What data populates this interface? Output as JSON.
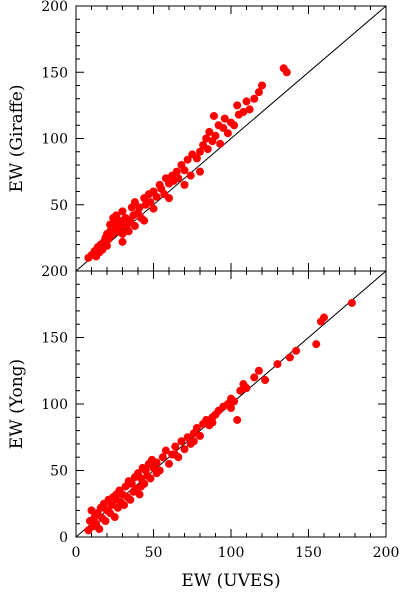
{
  "chart_data": [
    {
      "type": "scatter",
      "xlabel": "",
      "ylabel": "EW (Giraffe)",
      "xlim": [
        0,
        200
      ],
      "ylim": [
        0,
        200
      ],
      "x_ticks": [
        0,
        50,
        100,
        150,
        200
      ],
      "y_ticks": [
        50,
        100,
        150,
        200
      ],
      "reference_line": "y = x",
      "marker_color": "#ff0000",
      "points": [
        [
          8,
          10
        ],
        [
          10,
          12
        ],
        [
          12,
          15
        ],
        [
          13,
          11
        ],
        [
          14,
          18
        ],
        [
          15,
          14
        ],
        [
          16,
          20
        ],
        [
          17,
          16
        ],
        [
          18,
          22
        ],
        [
          19,
          25
        ],
        [
          20,
          19
        ],
        [
          20,
          28
        ],
        [
          21,
          24
        ],
        [
          22,
          30
        ],
        [
          22,
          35
        ],
        [
          23,
          27
        ],
        [
          24,
          40
        ],
        [
          24,
          33
        ],
        [
          25,
          29
        ],
        [
          26,
          42
        ],
        [
          26,
          36
        ],
        [
          27,
          31
        ],
        [
          28,
          38
        ],
        [
          29,
          33
        ],
        [
          30,
          28
        ],
        [
          30,
          45
        ],
        [
          31,
          36
        ],
        [
          32,
          40
        ],
        [
          33,
          35
        ],
        [
          34,
          30
        ],
        [
          35,
          38
        ],
        [
          36,
          48
        ],
        [
          37,
          42
        ],
        [
          38,
          34
        ],
        [
          38,
          52
        ],
        [
          40,
          44
        ],
        [
          41,
          48
        ],
        [
          42,
          40
        ],
        [
          44,
          55
        ],
        [
          45,
          50
        ],
        [
          47,
          58
        ],
        [
          48,
          52
        ],
        [
          50,
          60
        ],
        [
          52,
          56
        ],
        [
          54,
          65
        ],
        [
          55,
          62
        ],
        [
          57,
          58
        ],
        [
          58,
          70
        ],
        [
          60,
          66
        ],
        [
          62,
          72
        ],
        [
          63,
          68
        ],
        [
          65,
          75
        ],
        [
          66,
          70
        ],
        [
          68,
          80
        ],
        [
          70,
          76
        ],
        [
          72,
          84
        ],
        [
          74,
          72
        ],
        [
          75,
          88
        ],
        [
          78,
          85
        ],
        [
          80,
          90
        ],
        [
          82,
          95
        ],
        [
          84,
          100
        ],
        [
          85,
          92
        ],
        [
          86,
          105
        ],
        [
          88,
          98
        ],
        [
          89,
          117
        ],
        [
          90,
          102
        ],
        [
          92,
          110
        ],
        [
          93,
          96
        ],
        [
          95,
          108
        ],
        [
          96,
          115
        ],
        [
          98,
          104
        ],
        [
          100,
          112
        ],
        [
          102,
          110
        ],
        [
          104,
          125
        ],
        [
          105,
          118
        ],
        [
          108,
          120
        ],
        [
          110,
          128
        ],
        [
          112,
          122
        ],
        [
          115,
          130
        ],
        [
          118,
          135
        ],
        [
          120,
          140
        ],
        [
          134,
          153
        ],
        [
          136,
          150
        ],
        [
          44,
          38
        ],
        [
          50,
          47
        ],
        [
          60,
          55
        ],
        [
          70,
          65
        ],
        [
          80,
          75
        ],
        [
          30,
          22
        ]
      ]
    },
    {
      "type": "scatter",
      "xlabel": "EW (UVES)",
      "ylabel": "EW (Yong)",
      "xlim": [
        0,
        200
      ],
      "ylim": [
        0,
        200
      ],
      "x_ticks": [
        0,
        50,
        100,
        150,
        200
      ],
      "y_ticks": [
        0,
        50,
        100,
        150,
        200
      ],
      "reference_line": "y = x",
      "marker_color": "#ff0000",
      "points": [
        [
          8,
          5
        ],
        [
          9,
          12
        ],
        [
          10,
          20
        ],
        [
          11,
          8
        ],
        [
          12,
          15
        ],
        [
          13,
          10
        ],
        [
          14,
          18
        ],
        [
          15,
          6
        ],
        [
          16,
          22
        ],
        [
          17,
          14
        ],
        [
          18,
          25
        ],
        [
          19,
          12
        ],
        [
          20,
          20
        ],
        [
          21,
          28
        ],
        [
          22,
          18
        ],
        [
          23,
          24
        ],
        [
          24,
          30
        ],
        [
          25,
          15
        ],
        [
          26,
          28
        ],
        [
          27,
          22
        ],
        [
          28,
          35
        ],
        [
          29,
          26
        ],
        [
          30,
          32
        ],
        [
          31,
          24
        ],
        [
          32,
          38
        ],
        [
          33,
          30
        ],
        [
          34,
          42
        ],
        [
          35,
          28
        ],
        [
          36,
          40
        ],
        [
          37,
          34
        ],
        [
          38,
          45
        ],
        [
          39,
          36
        ],
        [
          40,
          48
        ],
        [
          41,
          32
        ],
        [
          42,
          44
        ],
        [
          43,
          52
        ],
        [
          44,
          40
        ],
        [
          45,
          50
        ],
        [
          46,
          46
        ],
        [
          47,
          55
        ],
        [
          48,
          44
        ],
        [
          49,
          58
        ],
        [
          50,
          52
        ],
        [
          52,
          56
        ],
        [
          54,
          50
        ],
        [
          56,
          60
        ],
        [
          58,
          65
        ],
        [
          60,
          55
        ],
        [
          62,
          62
        ],
        [
          64,
          68
        ],
        [
          66,
          60
        ],
        [
          68,
          72
        ],
        [
          70,
          66
        ],
        [
          72,
          75
        ],
        [
          74,
          70
        ],
        [
          76,
          78
        ],
        [
          78,
          82
        ],
        [
          80,
          76
        ],
        [
          82,
          85
        ],
        [
          84,
          88
        ],
        [
          86,
          84
        ],
        [
          88,
          90
        ],
        [
          90,
          92
        ],
        [
          92,
          95
        ],
        [
          95,
          98
        ],
        [
          98,
          100
        ],
        [
          100,
          97
        ],
        [
          102,
          102
        ],
        [
          104,
          88
        ],
        [
          106,
          110
        ],
        [
          108,
          115
        ],
        [
          110,
          112
        ],
        [
          115,
          120
        ],
        [
          118,
          125
        ],
        [
          122,
          118
        ],
        [
          130,
          130
        ],
        [
          138,
          135
        ],
        [
          142,
          140
        ],
        [
          155,
          145
        ],
        [
          158,
          162
        ],
        [
          160,
          165
        ],
        [
          178,
          176
        ],
        [
          26,
          32
        ],
        [
          34,
          40
        ],
        [
          42,
          38
        ],
        [
          52,
          48
        ],
        [
          64,
          62
        ],
        [
          76,
          72
        ],
        [
          88,
          86
        ],
        [
          100,
          104
        ]
      ]
    }
  ]
}
